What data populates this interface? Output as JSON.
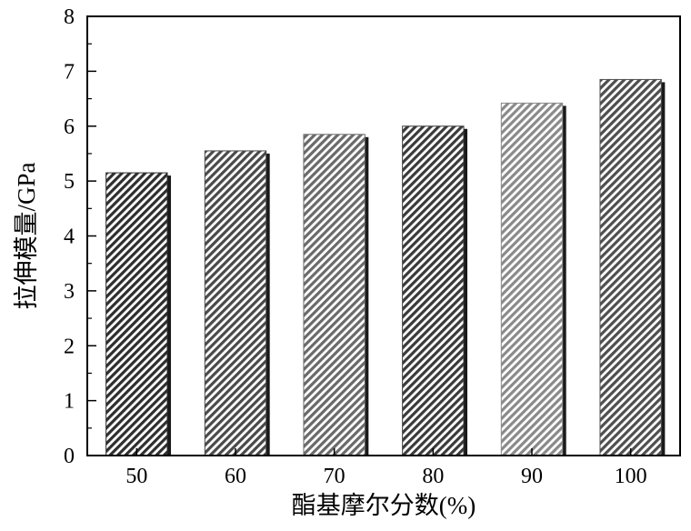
{
  "chart_data": {
    "type": "bar",
    "categories": [
      "50",
      "60",
      "70",
      "80",
      "90",
      "100"
    ],
    "values": [
      5.15,
      5.55,
      5.85,
      6.0,
      6.42,
      6.85
    ],
    "title": "",
    "xlabel": "酯基摩尔分数(%)",
    "ylabel": "拉伸模量/GPa",
    "ylim": [
      0,
      8
    ],
    "yticks": [
      0,
      1,
      2,
      3,
      4,
      5,
      6,
      7,
      8
    ],
    "grid": false,
    "legend": "none",
    "bar_colors": [
      "#2e2e2e",
      "#4a4a4a",
      "#6a6a6a",
      "#3a3a3a",
      "#8a8a8a",
      "#4f4f4f"
    ]
  }
}
